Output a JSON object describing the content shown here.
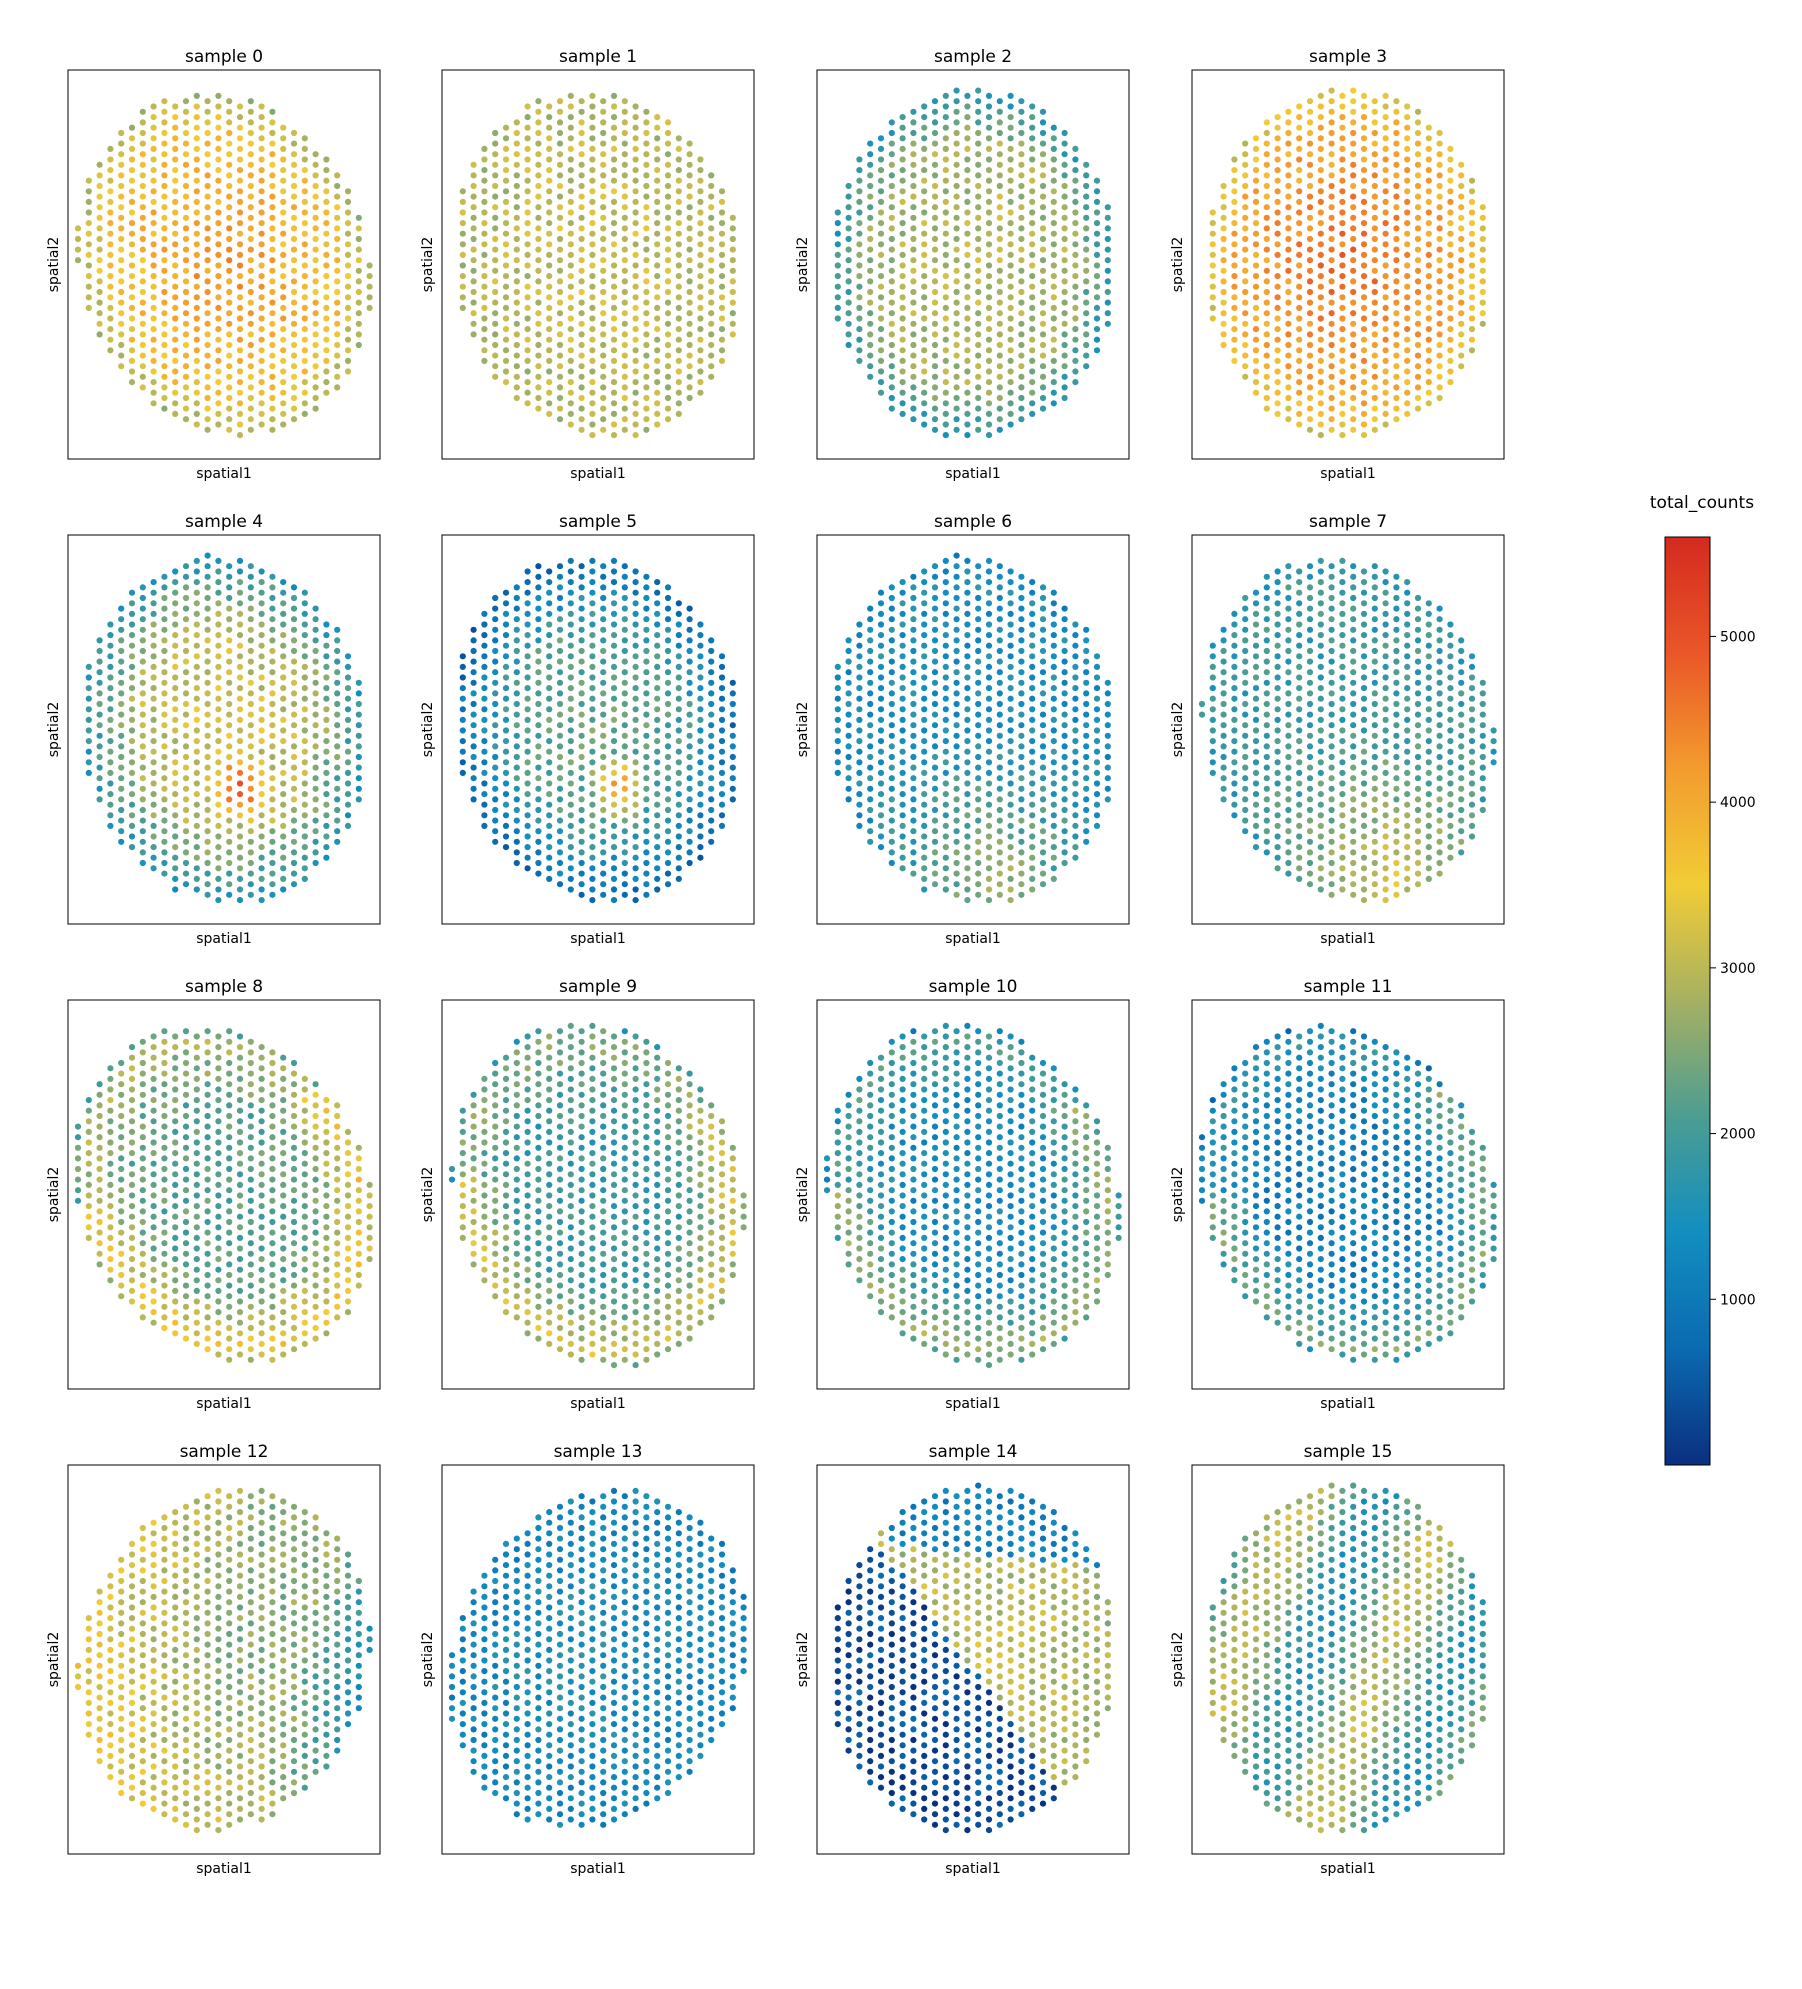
{
  "chart_data": {
    "type": "scatter",
    "panels": [
      {
        "title": "sample 0",
        "xlabel": "spatial1",
        "ylabel": "spatial2",
        "pattern": "center-high",
        "level": 3400,
        "shape": {
          "tilt": -0.35
        }
      },
      {
        "title": "sample 1",
        "xlabel": "spatial1",
        "ylabel": "spatial2",
        "pattern": "uniform",
        "level": 2900,
        "shape": {
          "tilt": -0.2
        }
      },
      {
        "title": "sample 2",
        "xlabel": "spatial1",
        "ylabel": "spatial2",
        "pattern": "core",
        "level": 2700,
        "shape": {
          "tilt": 0
        }
      },
      {
        "title": "sample 3",
        "xlabel": "spatial1",
        "ylabel": "spatial2",
        "pattern": "center-high",
        "level": 3800,
        "shape": {
          "tilt": 0
        }
      },
      {
        "title": "sample 4",
        "xlabel": "spatial1",
        "ylabel": "spatial2",
        "pattern": "core-hotspot",
        "level": 2700,
        "shape": {
          "tilt": -0.15
        }
      },
      {
        "title": "sample 5",
        "xlabel": "spatial1",
        "ylabel": "spatial2",
        "pattern": "core-hotspot",
        "level": 1800,
        "shape": {
          "tilt": -0.2
        }
      },
      {
        "title": "sample 6",
        "xlabel": "spatial1",
        "ylabel": "spatial2",
        "pattern": "bottom-band",
        "level": 1500,
        "shape": {
          "tilt": -0.15
        }
      },
      {
        "title": "sample 7",
        "xlabel": "spatial1",
        "ylabel": "spatial2",
        "pattern": "bottom-band",
        "level": 1900,
        "shape": {
          "tilt": -0.3
        }
      },
      {
        "title": "sample 8",
        "xlabel": "spatial1",
        "ylabel": "spatial2",
        "pattern": "ring-high",
        "level": 2200,
        "shape": {
          "tilt": -0.5
        }
      },
      {
        "title": "sample 9",
        "xlabel": "spatial1",
        "ylabel": "spatial2",
        "pattern": "ring-high",
        "level": 1900,
        "shape": {
          "tilt": -0.3
        }
      },
      {
        "title": "sample 10",
        "xlabel": "spatial1",
        "ylabel": "spatial2",
        "pattern": "ring-high",
        "level": 1400,
        "shape": {
          "tilt": -0.35
        }
      },
      {
        "title": "sample 11",
        "xlabel": "spatial1",
        "ylabel": "spatial2",
        "pattern": "ring-high",
        "level": 1100,
        "shape": {
          "tilt": -0.45
        }
      },
      {
        "title": "sample 12",
        "xlabel": "spatial1",
        "ylabel": "spatial2",
        "pattern": "left-high",
        "level": 2600,
        "shape": {
          "tilt": 0.3
        }
      },
      {
        "title": "sample 13",
        "xlabel": "spatial1",
        "ylabel": "spatial2",
        "pattern": "uniform",
        "level": 1250,
        "shape": {
          "tilt": 0.45
        }
      },
      {
        "title": "sample 14",
        "xlabel": "spatial1",
        "ylabel": "spatial2",
        "pattern": "diagonal-split",
        "level": 2800,
        "shape": {
          "tilt": 0.1
        }
      },
      {
        "title": "sample 15",
        "xlabel": "spatial1",
        "ylabel": "spatial2",
        "pattern": "mixed",
        "level": 2300,
        "shape": {
          "tilt": 0
        }
      }
    ],
    "colorbar": {
      "title": "total_counts",
      "min": 0,
      "max": 5600,
      "ticks": [
        1000,
        2000,
        3000,
        4000,
        5000
      ],
      "colormap": [
        "#0b2f7f",
        "#0b6ab0",
        "#128ec0",
        "#4c9d92",
        "#a6b063",
        "#f1cc36",
        "#f39c2e",
        "#ea5628",
        "#d42a20"
      ]
    },
    "grid": false
  }
}
